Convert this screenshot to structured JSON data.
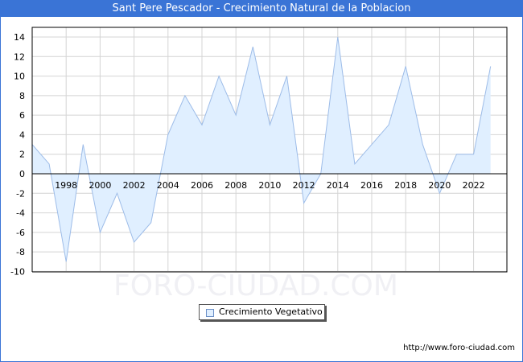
{
  "header": {
    "title": "Sant Pere Pescador - Crecimiento Natural de la Poblacion"
  },
  "legend": {
    "label": "Crecimiento Vegetativo"
  },
  "watermark": "FORO-CIUDAD.COM",
  "footer": {
    "url": "http://www.foro-ciudad.com"
  },
  "colors": {
    "title_bg": "#3a74d6",
    "area_fill": "#e0efff",
    "line": "#9dbce8",
    "grid": "#d4d4d4"
  },
  "chart_data": {
    "type": "area",
    "title": "Sant Pere Pescador - Crecimiento Natural de la Poblacion",
    "xlabel": "",
    "ylabel": "",
    "x": [
      1996,
      1997,
      1998,
      1999,
      2000,
      2001,
      2002,
      2003,
      2004,
      2005,
      2006,
      2007,
      2008,
      2009,
      2010,
      2011,
      2012,
      2013,
      2014,
      2015,
      2016,
      2017,
      2018,
      2019,
      2020,
      2021,
      2022,
      2023
    ],
    "series": [
      {
        "name": "Crecimiento Vegetativo",
        "values": [
          3,
          1,
          -9,
          3,
          -6,
          -2,
          -7,
          -5,
          4,
          8,
          5,
          10,
          6,
          13,
          5,
          10,
          -3,
          0,
          14,
          1,
          3,
          5,
          11,
          3,
          -2,
          2,
          2,
          11
        ]
      }
    ],
    "x_tick_labels": [
      "1998",
      "2000",
      "2002",
      "2004",
      "2006",
      "2008",
      "2010",
      "2012",
      "2014",
      "2016",
      "2018",
      "2020",
      "2022"
    ],
    "y_tick_labels": [
      "14",
      "12",
      "10",
      "8",
      "6",
      "4",
      "2",
      "0",
      "-2",
      "-4",
      "-6",
      "-8",
      "-10"
    ],
    "ylim": [
      -10,
      15
    ],
    "grid": true,
    "legend_position": "bottom-center"
  }
}
